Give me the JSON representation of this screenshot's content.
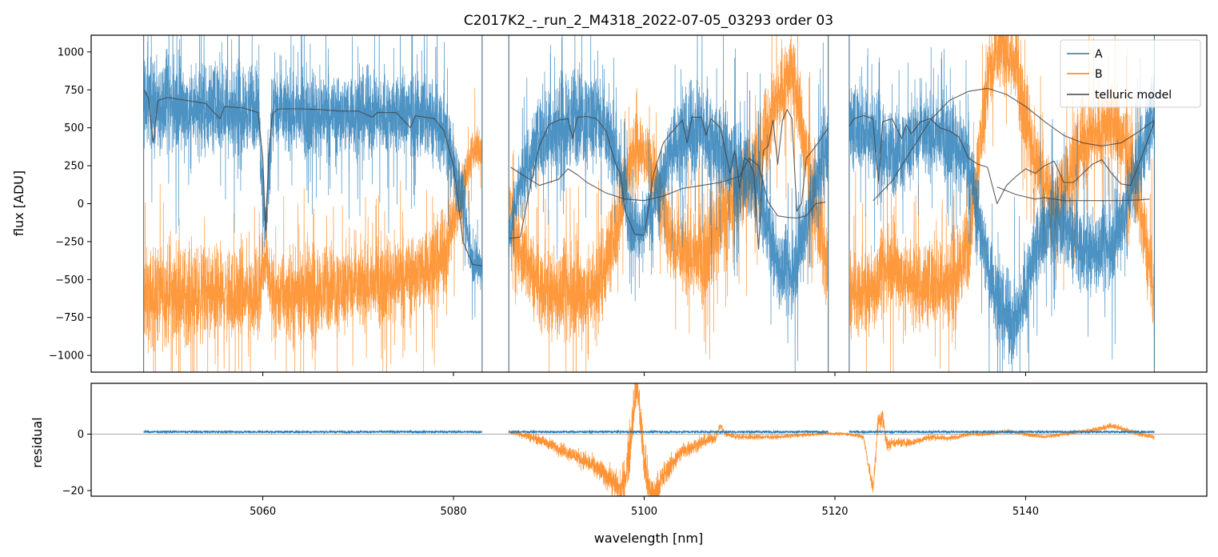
{
  "chart_data": [
    {
      "type": "line",
      "title": "C2017K2_-_run_2_M4318_2022-07-05_03293  order 03",
      "xlabel": "",
      "ylabel": "flux [ADU]",
      "xlim": [
        5042,
        5159
      ],
      "ylim": [
        -1110,
        1110
      ],
      "yticks": [
        -1000,
        -750,
        -500,
        -250,
        0,
        250,
        500,
        750,
        1000
      ],
      "yticklabels": [
        "−1000",
        "−750",
        "−500",
        "−250",
        "0",
        "250",
        "500",
        "750",
        "1000"
      ],
      "xticks": [
        5060,
        5080,
        5100,
        5120,
        5140
      ],
      "legend": {
        "position": "top-right",
        "entries": [
          "A",
          "B",
          "telluric model"
        ]
      },
      "segments": [
        [
          5047.5,
          5083
        ],
        [
          5085.8,
          5119.3
        ],
        [
          5121.5,
          5153.5
        ]
      ],
      "series": [
        {
          "name": "A",
          "color": "#1f77b4",
          "envelope_x": [
            5047.5,
            5049,
            5055,
            5059.5,
            5060.3,
            5061,
            5070,
            5076,
            5079,
            5080.5,
            5082,
            5083,
            5085.8,
            5087,
            5089,
            5092,
            5095,
            5097,
            5098.5,
            5099.5,
            5101,
            5103,
            5106,
            5108,
            5110,
            5112,
            5114,
            5115.5,
            5117,
            5119.3,
            5121.5,
            5124,
            5126,
            5129,
            5132,
            5134,
            5136,
            5137.5,
            5139,
            5141,
            5143,
            5146,
            5149,
            5151,
            5153.5
          ],
          "envelope_mid": [
            720,
            650,
            630,
            620,
            -200,
            600,
            600,
            580,
            500,
            150,
            -400,
            -400,
            -200,
            150,
            420,
            550,
            560,
            350,
            -100,
            -180,
            0,
            400,
            500,
            350,
            200,
            100,
            -400,
            -500,
            -100,
            450,
            500,
            480,
            300,
            450,
            450,
            300,
            -400,
            -700,
            -800,
            -300,
            -100,
            -300,
            -300,
            100,
            600
          ],
          "envelope_half": [
            350,
            350,
            320,
            300,
            200,
            300,
            300,
            300,
            300,
            250,
            150,
            150,
            200,
            250,
            300,
            350,
            350,
            300,
            250,
            200,
            250,
            300,
            350,
            350,
            350,
            300,
            300,
            300,
            300,
            350,
            300,
            300,
            300,
            300,
            300,
            300,
            300,
            300,
            300,
            300,
            300,
            300,
            300,
            300,
            300
          ]
        },
        {
          "name": "B",
          "color": "#ff7f0e",
          "envelope_x": [
            5047.5,
            5049,
            5055,
            5059.5,
            5060.3,
            5061,
            5070,
            5076,
            5079,
            5080.5,
            5082,
            5083,
            5085.8,
            5087,
            5089,
            5092,
            5095,
            5097,
            5098.5,
            5099.5,
            5101,
            5103,
            5106,
            5108,
            5110,
            5112,
            5114,
            5115.5,
            5117,
            5119.3,
            5121.5,
            5124,
            5126,
            5129,
            5132,
            5134,
            5136,
            5137.5,
            5139,
            5141,
            5143,
            5146,
            5149,
            5151,
            5153.5
          ],
          "envelope_mid": [
            -650,
            -600,
            -600,
            -600,
            -350,
            -600,
            -550,
            -450,
            -350,
            0,
            350,
            350,
            0,
            -350,
            -550,
            -600,
            -550,
            -200,
            300,
            400,
            200,
            -300,
            -350,
            -100,
            100,
            300,
            700,
            900,
            300,
            -500,
            -600,
            -550,
            -400,
            -550,
            -500,
            -300,
            800,
            1050,
            900,
            300,
            0,
            400,
            550,
            300,
            -600
          ],
          "envelope_half": [
            350,
            350,
            330,
            300,
            200,
            300,
            300,
            300,
            300,
            250,
            150,
            150,
            200,
            250,
            300,
            350,
            350,
            300,
            250,
            200,
            250,
            300,
            350,
            350,
            350,
            300,
            300,
            300,
            300,
            350,
            300,
            300,
            300,
            300,
            300,
            300,
            300,
            300,
            300,
            300,
            300,
            300,
            300,
            300,
            300
          ]
        },
        {
          "name": "telluric model",
          "color": "#444444",
          "segments": [
            {
              "x": [
                5047.5,
                5048,
                5048.5,
                5049,
                5050,
                5052,
                5054,
                5055.5,
                5056,
                5058,
                5059.5,
                5060,
                5060.3,
                5060.6,
                5061,
                5061.5,
                5062,
                5064,
                5066,
                5068,
                5070,
                5071.5,
                5072,
                5074,
                5075.5,
                5076,
                5078,
                5079,
                5080,
                5081,
                5082,
                5083
              ],
              "y": [
                750,
                700,
                400,
                680,
                700,
                680,
                660,
                560,
                640,
                630,
                600,
                300,
                -180,
                300,
                590,
                620,
                625,
                625,
                620,
                610,
                610,
                570,
                600,
                600,
                500,
                580,
                560,
                480,
                250,
                -250,
                -400,
                -410
              ]
            },
            {
              "x": [
                5085.8,
                5087,
                5088,
                5089,
                5090,
                5091,
                5092,
                5092.5,
                5093,
                5094,
                5095,
                5096,
                5097,
                5097.5,
                5098,
                5099,
                5100,
                5101,
                5102,
                5103,
                5104,
                5104.5,
                5105,
                5106,
                5106.5,
                5107,
                5108,
                5109,
                5109.5,
                5110,
                5110.5,
                5111,
                5111.5,
                5112,
                5112.5,
                5113,
                5113.5,
                5114,
                5114.5,
                5115,
                5115.5,
                5116,
                5116.5,
                5117,
                5118,
                5119.3
              ],
              "y": [
                -230,
                -220,
                100,
                380,
                520,
                550,
                560,
                430,
                570,
                575,
                560,
                480,
                260,
                200,
                -50,
                -200,
                -210,
                200,
                400,
                480,
                550,
                400,
                570,
                570,
                450,
                560,
                500,
                200,
                350,
                100,
                300,
                280,
                200,
                -300,
                350,
                380,
                550,
                260,
                550,
                620,
                560,
                -50,
                0,
                300,
                380,
                500
              ]
            },
            {
              "x": [
                5121.5,
                5122,
                5123,
                5124,
                5124.3,
                5124.6,
                5125,
                5126,
                5127,
                5127.5,
                5128,
                5129,
                5130,
                5131,
                5132,
                5133,
                5134,
                5135,
                5136,
                5137,
                5138,
                5139,
                5140,
                5141,
                5142,
                5143,
                5144,
                5145,
                5146,
                5147,
                5148,
                5149,
                5150,
                5151,
                5152,
                5153.5
              ],
              "y": [
                510,
                560,
                580,
                560,
                300,
                150,
                540,
                560,
                430,
                520,
                460,
                540,
                560,
                500,
                480,
                440,
                300,
                260,
                240,
                0,
                120,
                180,
                230,
                200,
                250,
                280,
                140,
                140,
                200,
                260,
                290,
                200,
                130,
                120,
                280,
                540
              ]
            },
            {
              "x": [
                5086,
                5087,
                5089,
                5091,
                5092,
                5093,
                5094,
                5096,
                5098,
                5100,
                5102,
                5104,
                5106,
                5108,
                5110,
                5111,
                5112,
                5113,
                5114,
                5115,
                5116,
                5117,
                5118,
                5119
              ],
              "y": [
                240,
                200,
                120,
                160,
                230,
                190,
                140,
                70,
                30,
                20,
                50,
                100,
                120,
                140,
                180,
                300,
                250,
                10,
                -80,
                -90,
                -95,
                -80,
                0,
                10
              ]
            },
            {
              "x": [
                5124,
                5126,
                5128,
                5130,
                5132,
                5134,
                5136,
                5138,
                5140,
                5142,
                5144,
                5146,
                5148,
                5150,
                5152,
                5153.5
              ],
              "y": [
                20,
                150,
                350,
                550,
                680,
                740,
                760,
                720,
                640,
                540,
                450,
                400,
                380,
                400,
                480,
                550
              ]
            },
            {
              "x": [
                5137,
                5139,
                5141,
                5142,
                5143,
                5144,
                5146,
                5148,
                5150,
                5152,
                5153
              ],
              "y": [
                110,
                60,
                30,
                40,
                30,
                20,
                20,
                20,
                20,
                25,
                30
              ]
            }
          ]
        }
      ]
    },
    {
      "type": "line",
      "title": "",
      "xlabel": "wavelength [nm]",
      "ylabel": "residual",
      "xlim": [
        5042,
        5159
      ],
      "ylim": [
        -22,
        18
      ],
      "yticks": [
        -20,
        0
      ],
      "yticklabels": [
        "−20",
        "0"
      ],
      "xticks": [
        5060,
        5080,
        5100,
        5120,
        5140
      ],
      "xticklabels": [
        "5060",
        "5080",
        "5100",
        "5120",
        "5140"
      ],
      "series": [
        {
          "name": "A",
          "color": "#1f77b4",
          "segments": [
            [
              5047.5,
              5083
            ],
            [
              5085.8,
              5119.3
            ],
            [
              5121.5,
              5153.5
            ]
          ],
          "level": 0.8,
          "noise": 0.4
        },
        {
          "name": "B",
          "color": "#ff7f0e",
          "x": [
            5085.8,
            5087,
            5089,
            5091,
            5093,
            5095,
            5096.5,
            5097.5,
            5098,
            5098.5,
            5099,
            5099.3,
            5099.6,
            5100,
            5100.5,
            5101,
            5102,
            5103,
            5104,
            5106,
            5107.5,
            5108,
            5108.5,
            5110,
            5112,
            5114,
            5116,
            5118,
            5119.3,
            5121.5,
            5123,
            5124,
            5124.5,
            5125,
            5125.5,
            5126,
            5128,
            5129,
            5130,
            5132,
            5134,
            5136,
            5138,
            5140,
            5142,
            5144,
            5146,
            5148,
            5149,
            5150,
            5152,
            5153.5
          ],
          "y": [
            0.8,
            0,
            -2,
            -5,
            -8,
            -12,
            -16,
            -20,
            -15,
            -5,
            15,
            18,
            5,
            -10,
            -20,
            -22,
            -15,
            -10,
            -6,
            -3,
            -1,
            3,
            0,
            -1,
            -1,
            -1,
            -0.5,
            0,
            0.2,
            0,
            -1,
            -20,
            4,
            6,
            -4,
            -3,
            -3,
            -2,
            -1,
            -1.5,
            0,
            0,
            1,
            0,
            -1,
            0,
            1,
            2,
            3,
            2,
            0,
            -1
          ],
          "noise": [
            0.5,
            1,
            1.5,
            2,
            2.5,
            3,
            4,
            5,
            6,
            8,
            8,
            6,
            6,
            8,
            6,
            5,
            4,
            3,
            2.5,
            2,
            1.5,
            1,
            1,
            0.8,
            0.8,
            0.6,
            0.6,
            0.5,
            0.5,
            0.5,
            0.8,
            3,
            3,
            3,
            2,
            1.5,
            1.2,
            1,
            1,
            0.8,
            0.6,
            0.6,
            0.6,
            0.6,
            0.6,
            0.6,
            0.6,
            0.8,
            0.8,
            0.8,
            0.8,
            0.8
          ]
        }
      ]
    }
  ]
}
